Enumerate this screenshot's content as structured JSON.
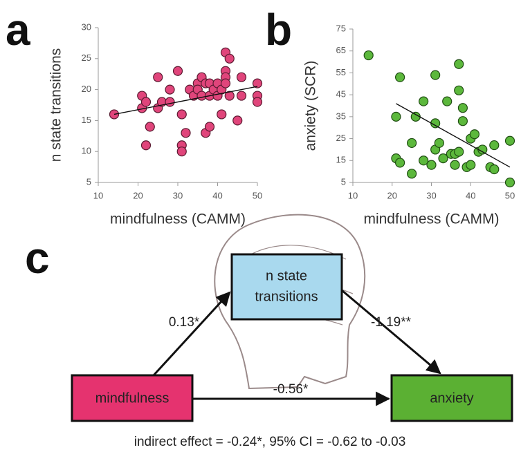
{
  "panel_labels": [
    "a",
    "b",
    "c"
  ],
  "chart_data": [
    {
      "type": "scatter",
      "xlabel": "mindfulness (CAMM)",
      "ylabel": "n state transitions",
      "xlim": [
        10,
        50
      ],
      "xticks": [
        10,
        20,
        30,
        40,
        50
      ],
      "ylim": [
        5,
        30
      ],
      "yticks": [
        5,
        10,
        15,
        20,
        25,
        30
      ],
      "color": "#e0457b",
      "edgecolor": "#5a1a30",
      "x": [
        14,
        21,
        21,
        22,
        22,
        23,
        25,
        25,
        26,
        28,
        28,
        30,
        31,
        31,
        31,
        32,
        33,
        34,
        35,
        35,
        36,
        36,
        37,
        37,
        38,
        38,
        38,
        39,
        40,
        40,
        41,
        41,
        42,
        42,
        42,
        42,
        43,
        43,
        45,
        46,
        46,
        50,
        50,
        50
      ],
      "y": [
        16,
        19,
        17,
        18,
        11,
        14,
        22,
        17,
        18,
        18,
        20,
        23,
        16,
        11,
        10,
        13,
        20,
        19,
        21,
        20,
        22,
        19,
        21,
        13,
        21,
        14,
        19,
        20,
        21,
        19,
        16,
        20,
        26,
        23,
        22,
        21,
        25,
        19,
        15,
        22,
        19,
        21,
        19,
        18
      ],
      "fit": {
        "x": [
          14,
          50
        ],
        "y": [
          16,
          20.5
        ]
      }
    },
    {
      "type": "scatter",
      "xlabel": "mindfulness (CAMM)",
      "ylabel": "anxiety (SCR)",
      "xlim": [
        10,
        50
      ],
      "xticks": [
        10,
        20,
        30,
        40,
        50
      ],
      "ylim": [
        5,
        75
      ],
      "yticks": [
        5,
        15,
        25,
        35,
        45,
        55,
        65,
        75
      ],
      "color": "#5cb83c",
      "edgecolor": "#1f4d12",
      "x": [
        14,
        21,
        21,
        22,
        22,
        25,
        25,
        26,
        28,
        28,
        30,
        31,
        31,
        31,
        32,
        33,
        34,
        35,
        36,
        36,
        37,
        37,
        37,
        38,
        38,
        39,
        40,
        40,
        41,
        42,
        43,
        45,
        46,
        46,
        50,
        50
      ],
      "y": [
        63,
        35,
        16,
        53,
        14,
        23,
        9,
        35,
        42,
        15,
        13,
        54,
        32,
        20,
        23,
        16,
        42,
        18,
        13,
        18,
        59,
        47,
        19,
        39,
        33,
        12,
        13,
        25,
        27,
        19,
        20,
        12,
        11,
        22,
        24,
        5
      ],
      "fit": {
        "x": [
          21,
          50
        ],
        "y": [
          41,
          12
        ]
      }
    }
  ],
  "diagram": {
    "nodes": [
      {
        "lines": [
          "n state",
          "transitions"
        ]
      },
      {
        "lines": [
          "mindfulness"
        ]
      },
      {
        "lines": [
          "anxiety"
        ]
      }
    ],
    "edges": [
      {
        "label": "0.13*"
      },
      {
        "label": "-1.19**"
      },
      {
        "label": "-0.56*"
      }
    ],
    "note": "indirect effect = -0.24*, 95% CI = -0.62 to -0.03"
  }
}
